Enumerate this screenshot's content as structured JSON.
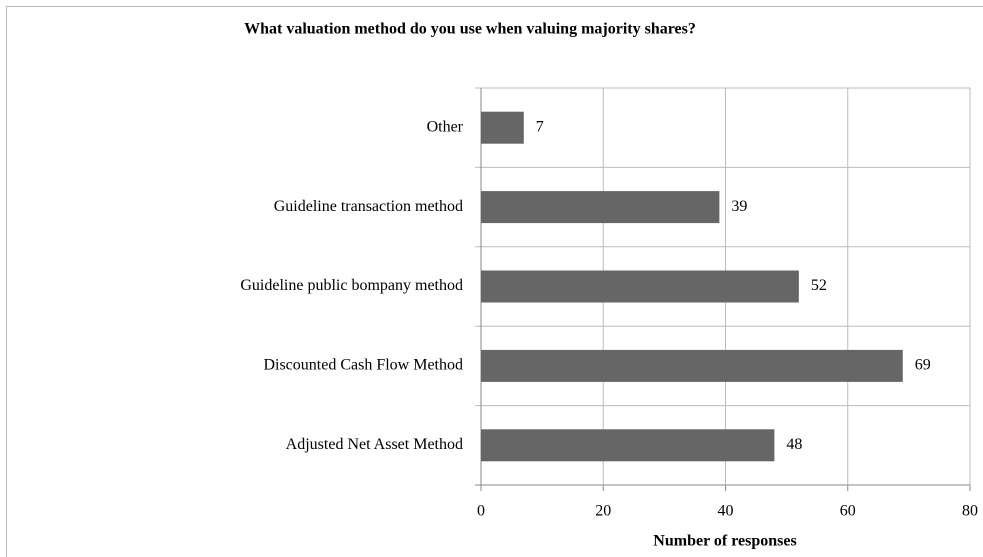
{
  "chart_data": {
    "type": "bar",
    "orientation": "horizontal",
    "title": "What valuation method do you use when valuing majority shares?",
    "categories": [
      "Other",
      "Guideline transaction method",
      "Guideline public bompany method",
      "Discounted Cash Flow Method",
      "Adjusted Net Asset Method"
    ],
    "values": [
      7,
      39,
      52,
      69,
      48
    ],
    "color": "#666666",
    "xlabel": "Number of responses",
    "xlim": [
      0,
      80
    ],
    "xticks": [
      0,
      20,
      40,
      60,
      80
    ],
    "grid": true
  }
}
